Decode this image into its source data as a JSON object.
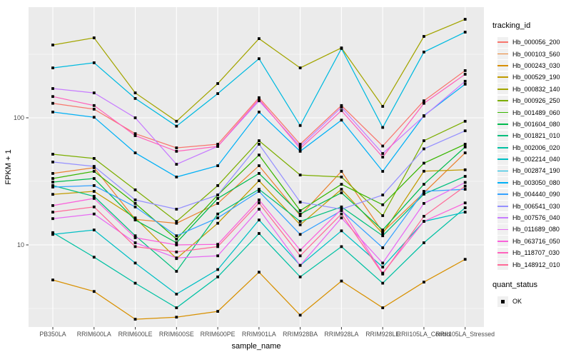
{
  "chart_data": {
    "type": "line",
    "title": "",
    "xlabel": "sample_name",
    "ylabel": "FPKM + 1",
    "y_scale": "log10",
    "ylim": [
      2.3,
      740
    ],
    "y_tick_labels": [
      "100",
      "10"
    ],
    "y_ticks": [
      100,
      10
    ],
    "y_minor_ticks": [
      3.162,
      31.62,
      316.2
    ],
    "grid": "major-and-minor, white on grey panel",
    "panel_color": "#EBEBEB",
    "grid_color": "#FFFFFF",
    "point_color": "#000000",
    "legend_position": "right",
    "legend_title": "tracking_id",
    "categories": [
      "PB350LA",
      "RRIM600LA",
      "RRIM600LE",
      "RRIM600SE",
      "RRIM600PE",
      "RRIM901LA",
      "RRIM928BA",
      "RRIM928LA",
      "RRIM928LE",
      "RRII105LA_Control",
      "RRII105LA_Stressed"
    ],
    "series": [
      {
        "name": "Hb_000056_200",
        "color": "#F8766D",
        "values": [
          130,
          117,
          75,
          58,
          62,
          144,
          62,
          125,
          60,
          136,
          235
        ]
      },
      {
        "name": "Hb_000103_560",
        "color": "#EA8331",
        "values": [
          36.5,
          40.5,
          15.9,
          14.8,
          21.2,
          42,
          17,
          37.9,
          12.6,
          25.7,
          53
        ]
      },
      {
        "name": "Hb_000243_030",
        "color": "#D89000",
        "values": [
          5.3,
          4.3,
          2.6,
          2.7,
          3.0,
          6.1,
          2.8,
          5.2,
          3.2,
          5.1,
          7.7
        ]
      },
      {
        "name": "Hb_000529_190",
        "color": "#C09B00",
        "values": [
          25,
          26.4,
          16.3,
          7.8,
          14.8,
          32,
          14.4,
          27.4,
          12.3,
          38,
          39
        ]
      },
      {
        "name": "Hb_000832_140",
        "color": "#A3A500",
        "values": [
          374,
          426,
          157,
          94,
          186,
          420,
          247,
          355,
          123,
          437,
          596
        ]
      },
      {
        "name": "Hb_000926_250",
        "color": "#7CAE00",
        "values": [
          51.7,
          47.9,
          27.1,
          15.3,
          29.3,
          66,
          35.5,
          34.2,
          17,
          66,
          94
        ]
      },
      {
        "name": "Hb_001489_060",
        "color": "#39B600",
        "values": [
          33.3,
          37.9,
          21.2,
          11.1,
          24.7,
          51,
          18.6,
          30,
          20.7,
          44,
          62
        ]
      },
      {
        "name": "Hb_001604_080",
        "color": "#00BB4E",
        "values": [
          31.2,
          33.3,
          15.7,
          10.4,
          23.2,
          36.5,
          17.5,
          25.7,
          13.1,
          30,
          58.9
        ]
      },
      {
        "name": "Hb_001821_010",
        "color": "#00BF7D",
        "values": [
          29.3,
          24.1,
          11.8,
          6.2,
          17.5,
          27.4,
          15.3,
          19.9,
          11.8,
          25.1,
          34.6
        ]
      },
      {
        "name": "Hb_002006_020",
        "color": "#00C1A3",
        "values": [
          12.5,
          8.0,
          5.0,
          3.2,
          5.6,
          12.3,
          5.6,
          9.7,
          5.0,
          10.4,
          19.6
        ]
      },
      {
        "name": "Hb_002214_040",
        "color": "#00BFC4",
        "values": [
          12.1,
          13.1,
          7.2,
          4.1,
          6.4,
          15.7,
          6.9,
          12.9,
          6.7,
          15.3,
          18.1
        ]
      },
      {
        "name": "Hb_002874_190",
        "color": "#00BAE0",
        "values": [
          247,
          271,
          142,
          86,
          155,
          292,
          87,
          351,
          84,
          329,
          472
        ]
      },
      {
        "name": "Hb_003050_080",
        "color": "#00B0F6",
        "values": [
          111,
          101,
          53,
          34.2,
          42,
          111,
          54.5,
          96,
          37.9,
          104,
          184
        ]
      },
      {
        "name": "Hb_004440_090",
        "color": "#35A2FF",
        "values": [
          28.5,
          29.3,
          19.9,
          11.8,
          16.3,
          26.4,
          12.1,
          18.6,
          9.5,
          26.4,
          27.4
        ]
      },
      {
        "name": "Hb_006541_030",
        "color": "#9590FF",
        "values": [
          44.9,
          41.5,
          22.6,
          19.1,
          24.7,
          62,
          21.7,
          19.1,
          24.7,
          57,
          79
        ]
      },
      {
        "name": "Hb_007576_040",
        "color": "#C77CFF",
        "values": [
          170,
          157,
          100,
          43.1,
          59.6,
          136,
          59.6,
          121,
          52.4,
          103,
          194
        ]
      },
      {
        "name": "Hb_011689_080",
        "color": "#E76BF3",
        "values": [
          16.1,
          17.5,
          10.4,
          7.9,
          8.2,
          19.1,
          6.9,
          16.3,
          7.2,
          21.2,
          31
        ]
      },
      {
        "name": "Hb_063716_050",
        "color": "#FA62DB",
        "values": [
          20.4,
          23.2,
          11.4,
          10.0,
          10.1,
          22.6,
          9.1,
          19.1,
          6.0,
          15.3,
          21.4
        ]
      },
      {
        "name": "Hb_118707_030",
        "color": "#FF62BC",
        "values": [
          147,
          125,
          72.4,
          54.5,
          59.6,
          140,
          57.3,
          114,
          49.1,
          130,
          220
        ]
      },
      {
        "name": "Hb_148912_010",
        "color": "#FF6A98",
        "values": [
          18.1,
          19.9,
          9.7,
          8.8,
          9.7,
          21.4,
          8.2,
          17.5,
          5.9,
          16.8,
          29
        ]
      }
    ],
    "quant_legend": {
      "title": "quant_status",
      "items": [
        {
          "label": "OK",
          "shape": "black-square"
        }
      ]
    }
  },
  "axes": {
    "y_title": "FPKM + 1",
    "x_title": "sample_name"
  },
  "legend": {
    "tracking_title": "tracking_id",
    "quant_title": "quant_status",
    "quant_ok_label": "OK"
  }
}
